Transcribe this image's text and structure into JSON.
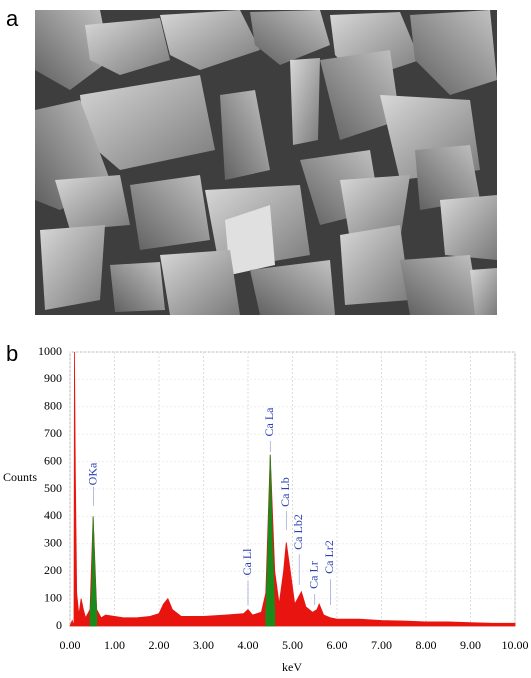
{
  "panel_labels": [
    "a",
    "b"
  ],
  "chart_data": {
    "type": "area",
    "xlabel": "keV",
    "ylabel": "Counts",
    "xlim": [
      0,
      10
    ],
    "ylim": [
      0,
      1000
    ],
    "xticks": [
      {
        "value": 0,
        "label": "0.00"
      },
      {
        "value": 1,
        "label": "1.00"
      },
      {
        "value": 2,
        "label": "2.00"
      },
      {
        "value": 3,
        "label": "3.00"
      },
      {
        "value": 4,
        "label": "4.00"
      },
      {
        "value": 5,
        "label": "5.00"
      },
      {
        "value": 6,
        "label": "6.00"
      },
      {
        "value": 7,
        "label": "7.00"
      },
      {
        "value": 8,
        "label": "8.00"
      },
      {
        "value": 9,
        "label": "9.00"
      },
      {
        "value": 10,
        "label": "10.00"
      }
    ],
    "yticks": [
      0,
      100,
      200,
      300,
      400,
      500,
      600,
      700,
      800,
      900,
      1000
    ],
    "grid": true,
    "series": [
      {
        "color": "#e8140f",
        "x": [
          0,
          0.05,
          0.09,
          0.1,
          0.12,
          0.15,
          0.2,
          0.25,
          0.3,
          0.35,
          0.45,
          0.52,
          0.6,
          0.7,
          0.8,
          1.0,
          1.2,
          1.5,
          1.8,
          2.0,
          2.1,
          2.2,
          2.3,
          2.5,
          3.0,
          3.5,
          3.9,
          4.0,
          4.1,
          4.3,
          4.4,
          4.5,
          4.6,
          4.7,
          4.8,
          4.86,
          4.95,
          5.05,
          5.15,
          5.2,
          5.3,
          5.45,
          5.55,
          5.6,
          5.7,
          5.85,
          6.0,
          6.5,
          7.0,
          7.5,
          8.0,
          8.5,
          9.0,
          9.5,
          10.0
        ],
        "values": [
          0,
          20,
          0,
          1000,
          560,
          120,
          40,
          100,
          60,
          30,
          60,
          400,
          60,
          30,
          40,
          35,
          30,
          30,
          35,
          45,
          80,
          100,
          60,
          35,
          35,
          40,
          45,
          60,
          40,
          50,
          120,
          625,
          200,
          80,
          200,
          305,
          200,
          80,
          110,
          125,
          70,
          50,
          60,
          80,
          40,
          30,
          25,
          25,
          20,
          18,
          15,
          15,
          12,
          10,
          10
        ]
      },
      {
        "color": "#1a8a1a",
        "x": [
          0.45,
          0.49,
          0.52,
          0.56,
          0.6,
          null,
          4.4,
          4.45,
          4.5,
          4.55,
          4.6
        ],
        "values": [
          40,
          150,
          400,
          200,
          40,
          null,
          50,
          300,
          625,
          300,
          50
        ]
      }
    ],
    "annotations": [
      {
        "text": "OKa",
        "x": 0.53
      },
      {
        "text": "Ca La",
        "x": 4.5
      },
      {
        "text": "Ca Lb",
        "x": 4.86
      },
      {
        "text": "Ca Lb2",
        "x": 5.15
      },
      {
        "text": "Ca Ll",
        "x": 4.0
      },
      {
        "text": "Ca Lr",
        "x": 5.5
      },
      {
        "text": "Ca Lr2",
        "x": 5.85
      }
    ]
  }
}
